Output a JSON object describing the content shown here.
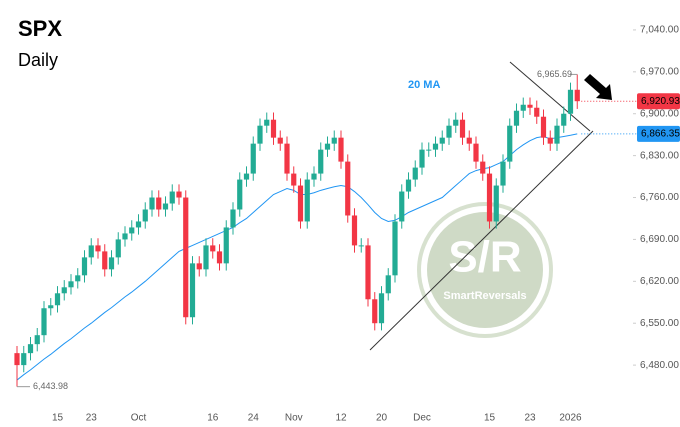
{
  "chart_data": {
    "type": "candlestick",
    "title": "SPX",
    "subtitle": "Daily",
    "categories": [
      null,
      null,
      null,
      null,
      null,
      null,
      "15",
      null,
      null,
      null,
      null,
      "23",
      null,
      null,
      null,
      null,
      null,
      null,
      "Oct",
      null,
      null,
      null,
      null,
      null,
      null,
      null,
      null,
      null,
      null,
      "16",
      null,
      null,
      null,
      null,
      null,
      "24",
      null,
      null,
      null,
      null,
      null,
      "Nov",
      null,
      null,
      null,
      null,
      null,
      null,
      "12",
      null,
      null,
      null,
      null,
      null,
      "20",
      null,
      null,
      null,
      null,
      null,
      "Dec",
      null,
      null,
      null,
      null,
      null,
      null,
      null,
      null,
      null,
      "15",
      null,
      null,
      null,
      null,
      null,
      "23",
      null,
      null,
      null,
      null,
      null,
      "2026",
      null
    ],
    "open": [
      6500,
      6480,
      6500,
      6515,
      6530,
      6575,
      6580,
      6600,
      6610,
      6620,
      6630,
      6660,
      6680,
      6670,
      6640,
      6660,
      6690,
      6700,
      6710,
      6720,
      6740,
      6760,
      6740,
      6750,
      6770,
      6760,
      6560,
      6650,
      6640,
      6680,
      6670,
      6650,
      6710,
      6740,
      6790,
      6800,
      6850,
      6880,
      6890,
      6860,
      6850,
      6800,
      6780,
      6720,
      6790,
      6800,
      6840,
      6850,
      6860,
      6820,
      6730,
      6680,
      6680,
      6590,
      6550,
      6600,
      6630,
      6720,
      6770,
      6790,
      6810,
      6840,
      6840,
      6850,
      6860,
      6880,
      6890,
      6860,
      6850,
      6820,
      6800,
      6720,
      6780,
      6820,
      6880,
      6905,
      6915,
      6910,
      6895,
      6860,
      6850,
      6880,
      6900,
      6940
    ],
    "high": [
      6512,
      6512,
      6527,
      6542,
      6587,
      6592,
      6612,
      6622,
      6632,
      6642,
      6672,
      6692,
      6692,
      6682,
      6672,
      6702,
      6712,
      6722,
      6732,
      6752,
      6772,
      6772,
      6762,
      6782,
      6782,
      6772,
      6662,
      6662,
      6692,
      6692,
      6682,
      6722,
      6752,
      6802,
      6812,
      6862,
      6892,
      6902,
      6902,
      6872,
      6862,
      6812,
      6792,
      6802,
      6812,
      6852,
      6862,
      6872,
      6872,
      6832,
      6742,
      6692,
      6692,
      6602,
      6612,
      6642,
      6732,
      6782,
      6802,
      6822,
      6852,
      6852,
      6862,
      6872,
      6892,
      6902,
      6902,
      6872,
      6862,
      6832,
      6812,
      6792,
      6832,
      6892,
      6917,
      6927,
      6927,
      6922,
      6907,
      6872,
      6892,
      6912,
      6952,
      6965.69
    ],
    "low": [
      6443.98,
      6468,
      6488,
      6503,
      6518,
      6563,
      6568,
      6588,
      6598,
      6608,
      6618,
      6648,
      6658,
      6628,
      6628,
      6648,
      6678,
      6688,
      6698,
      6708,
      6728,
      6728,
      6728,
      6738,
      6748,
      6548,
      6548,
      6628,
      6628,
      6658,
      6638,
      6638,
      6698,
      6728,
      6778,
      6788,
      6838,
      6868,
      6848,
      6838,
      6788,
      6768,
      6708,
      6708,
      6778,
      6788,
      6828,
      6838,
      6808,
      6718,
      6668,
      6668,
      6578,
      6538,
      6538,
      6588,
      6618,
      6708,
      6758,
      6778,
      6798,
      6828,
      6828,
      6838,
      6848,
      6868,
      6848,
      6838,
      6808,
      6788,
      6708,
      6708,
      6768,
      6808,
      6868,
      6893,
      6898,
      6883,
      6848,
      6838,
      6838,
      6868,
      6888,
      6908
    ],
    "close": [
      6480,
      6500,
      6515,
      6530,
      6575,
      6580,
      6600,
      6610,
      6620,
      6630,
      6660,
      6680,
      6670,
      6640,
      6660,
      6690,
      6700,
      6710,
      6720,
      6740,
      6760,
      6740,
      6750,
      6770,
      6760,
      6560,
      6650,
      6640,
      6680,
      6670,
      6650,
      6710,
      6740,
      6790,
      6800,
      6850,
      6880,
      6890,
      6860,
      6850,
      6800,
      6780,
      6720,
      6790,
      6800,
      6840,
      6850,
      6860,
      6820,
      6730,
      6680,
      6680,
      6590,
      6550,
      6600,
      6630,
      6720,
      6770,
      6790,
      6810,
      6840,
      6840,
      6850,
      6860,
      6880,
      6890,
      6860,
      6850,
      6820,
      6800,
      6720,
      6780,
      6820,
      6880,
      6905,
      6915,
      6910,
      6895,
      6860,
      6850,
      6880,
      6900,
      6940,
      6920.93
    ],
    "up_color": "#22ab94",
    "down_color": "#f23645",
    "series": [
      {
        "name": "20 MA",
        "color": "#2196f3",
        "values": [
          6455,
          6464,
          6472,
          6481,
          6490,
          6498,
          6507,
          6516,
          6524,
          6533,
          6542,
          6550,
          6559,
          6568,
          6576,
          6585,
          6594,
          6602,
          6611,
          6620,
          6630,
          6640,
          6650,
          6660,
          6670,
          6675,
          6680,
          6685,
          6690,
          6695,
          6700,
          6705,
          6710,
          6718,
          6725,
          6735,
          6745,
          6755,
          6765,
          6770,
          6775,
          6772,
          6765,
          6765,
          6768,
          6772,
          6775,
          6778,
          6780,
          6778,
          6770,
          6760,
          6748,
          6735,
          6725,
          6720,
          6722,
          6728,
          6735,
          6740,
          6745,
          6750,
          6755,
          6760,
          6770,
          6780,
          6790,
          6800,
          6805,
          6808,
          6810,
          6815,
          6820,
          6830,
          6840,
          6848,
          6855,
          6860,
          6862,
          6858,
          6860,
          6862,
          6864,
          6866.35
        ]
      }
    ],
    "ylim": [
      6405,
      7090
    ],
    "yticks": [
      {
        "value": 6480,
        "label": "6,480.00"
      },
      {
        "value": 6550,
        "label": "6,550.00"
      },
      {
        "value": 6620,
        "label": "6,620.00"
      },
      {
        "value": 6690,
        "label": "6,690.00"
      },
      {
        "value": 6760,
        "label": "6,760.00"
      },
      {
        "value": 6830,
        "label": "6,830.00"
      },
      {
        "value": 6900,
        "label": "6,900.00"
      },
      {
        "value": 6970,
        "label": "6,970.00"
      },
      {
        "value": 7040,
        "label": "7,040.00"
      }
    ],
    "high_label": {
      "value": 6965.69,
      "label": "6,965.69"
    },
    "low_label": {
      "value": 6443.98,
      "label": "6,443.98"
    },
    "last_close_label": {
      "value": 6920.93,
      "label": "6,920.93"
    },
    "ma_last_label": {
      "value": 6866.35,
      "label": "6,866.35"
    },
    "watermark": {
      "title": "S/R",
      "subtitle": "SmartReversals"
    }
  }
}
